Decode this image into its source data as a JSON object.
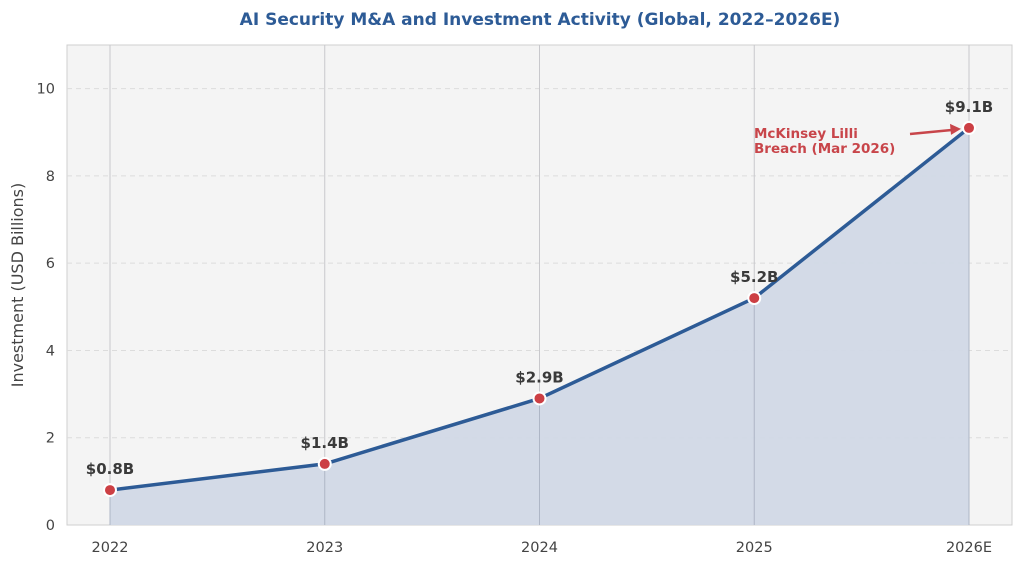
{
  "chart_data": {
    "type": "area",
    "title": "AI Security M&A and Investment Activity (Global, 2022–2026E)",
    "xlabel": "",
    "ylabel": "Investment (USD Billions)",
    "categories": [
      "2022",
      "2023",
      "2024",
      "2025",
      "2026E"
    ],
    "values": [
      0.8,
      1.4,
      2.9,
      5.2,
      9.1
    ],
    "data_labels": [
      "$0.8B",
      "$1.4B",
      "$2.9B",
      "$5.2B",
      "$9.1B"
    ],
    "ylim": [
      0,
      11
    ],
    "yticks": [
      0,
      2,
      4,
      6,
      8,
      10
    ],
    "grid": true,
    "legend": null,
    "annotation": {
      "lines": [
        "McKinsey Lilli",
        "Breach (Mar 2026)"
      ],
      "target_category": "2026E",
      "target_value": 9.1
    },
    "colors": {
      "line": "#2d5b96",
      "fill": "#d1d8e6",
      "marker": "#cc3f44",
      "annotation": "#c8454a",
      "plot_bg": "#f4f4f4",
      "title": "#2d5b96"
    }
  }
}
